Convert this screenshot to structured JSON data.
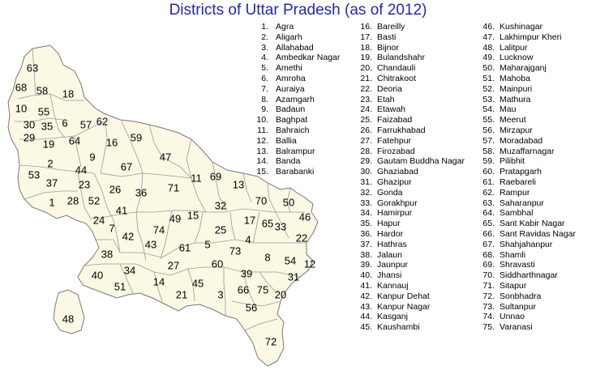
{
  "title": "Districts of Uttar Pradesh (as of 2012)",
  "colors": {
    "land": "#fbf8e4",
    "border": "#777777",
    "title": "#2226b8"
  },
  "districts": [
    {
      "n": "1.",
      "name": "Agra"
    },
    {
      "n": "2.",
      "name": "Aligarh"
    },
    {
      "n": "3.",
      "name": "Allahabad"
    },
    {
      "n": "4.",
      "name": "Ambedkar Nagar"
    },
    {
      "n": "5.",
      "name": "Amethi"
    },
    {
      "n": "6.",
      "name": "Amroha"
    },
    {
      "n": "7.",
      "name": "Auraiya"
    },
    {
      "n": "8.",
      "name": "Azamgarh"
    },
    {
      "n": "9.",
      "name": "Badaun"
    },
    {
      "n": "10.",
      "name": "Baghpat"
    },
    {
      "n": "11.",
      "name": "Bahraich"
    },
    {
      "n": "12.",
      "name": "Ballia"
    },
    {
      "n": "13.",
      "name": "Balrampur"
    },
    {
      "n": "14.",
      "name": "Banda"
    },
    {
      "n": "15.",
      "name": "Barabanki"
    },
    {
      "n": "16.",
      "name": "Bareilly"
    },
    {
      "n": "17.",
      "name": "Basti"
    },
    {
      "n": "18.",
      "name": "Bijnor"
    },
    {
      "n": "19.",
      "name": "Bulandshahr"
    },
    {
      "n": "20.",
      "name": "Chandauli"
    },
    {
      "n": "21.",
      "name": "Chitrakoot"
    },
    {
      "n": "22.",
      "name": "Deoria"
    },
    {
      "n": "23.",
      "name": "Etah"
    },
    {
      "n": "24.",
      "name": "Etawah"
    },
    {
      "n": "25.",
      "name": "Faizabad"
    },
    {
      "n": "26.",
      "name": "Farrukhabad"
    },
    {
      "n": "27.",
      "name": "Fatehpur"
    },
    {
      "n": "28.",
      "name": "Firozabad"
    },
    {
      "n": "29.",
      "name": "Gautam Buddha Nagar"
    },
    {
      "n": "30.",
      "name": "Ghaziabad"
    },
    {
      "n": "31.",
      "name": "Ghazipur"
    },
    {
      "n": "32.",
      "name": "Gonda"
    },
    {
      "n": "33.",
      "name": "Gorakhpur"
    },
    {
      "n": "34.",
      "name": "Hamirpur"
    },
    {
      "n": "35.",
      "name": "Hapur"
    },
    {
      "n": "36.",
      "name": "Hardor"
    },
    {
      "n": "37.",
      "name": "Hathras"
    },
    {
      "n": "38.",
      "name": "Jalaun"
    },
    {
      "n": "39.",
      "name": "Jaunpur"
    },
    {
      "n": "40.",
      "name": "Jhansi"
    },
    {
      "n": "41.",
      "name": "Kannauj"
    },
    {
      "n": "42.",
      "name": "Kanpur Dehat"
    },
    {
      "n": "43.",
      "name": "Kanpur Nagar"
    },
    {
      "n": "44.",
      "name": "Kasganj"
    },
    {
      "n": "45.",
      "name": "Kaushambi"
    },
    {
      "n": "46.",
      "name": "Kushinagar"
    },
    {
      "n": "47.",
      "name": "Lakhimpur Kheri"
    },
    {
      "n": "48.",
      "name": "Lalitpur"
    },
    {
      "n": "49.",
      "name": "Lucknow"
    },
    {
      "n": "50.",
      "name": "Maharajganj"
    },
    {
      "n": "51.",
      "name": "Mahoba"
    },
    {
      "n": "52.",
      "name": "Mainpuri"
    },
    {
      "n": "53.",
      "name": "Mathura"
    },
    {
      "n": "54.",
      "name": "Mau"
    },
    {
      "n": "55.",
      "name": "Meerut"
    },
    {
      "n": "56.",
      "name": "Mirzapur"
    },
    {
      "n": "57.",
      "name": "Moradabad"
    },
    {
      "n": "58.",
      "name": "Muzaffarnagar"
    },
    {
      "n": "59.",
      "name": "Pilibhit"
    },
    {
      "n": "60.",
      "name": "Pratapgarh"
    },
    {
      "n": "61.",
      "name": "Raebareli"
    },
    {
      "n": "62.",
      "name": "Rampur"
    },
    {
      "n": "63.",
      "name": "Saharanpur"
    },
    {
      "n": "64.",
      "name": "Sambhal"
    },
    {
      "n": "65.",
      "name": "Sant Kabir Nagar"
    },
    {
      "n": "66.",
      "name": "Sant Ravidas Nagar"
    },
    {
      "n": "67.",
      "name": "Shahjahanpur"
    },
    {
      "n": "68.",
      "name": "Shamli"
    },
    {
      "n": "69.",
      "name": "Shravasti"
    },
    {
      "n": "70.",
      "name": "Siddharthnagar"
    },
    {
      "n": "71.",
      "name": "Sitapur"
    },
    {
      "n": "72.",
      "name": "Sonbhadra"
    },
    {
      "n": "73.",
      "name": "Sultanpur"
    },
    {
      "n": "74.",
      "name": "Unnao"
    },
    {
      "n": "75.",
      "name": "Varanasi"
    }
  ],
  "map_labels": [
    "63",
    "68",
    "58",
    "18",
    "10",
    "55",
    "30",
    "35",
    "6",
    "57",
    "62",
    "29",
    "19",
    "64",
    "16",
    "59",
    "9",
    "47",
    "2",
    "44",
    "67",
    "53",
    "37",
    "23",
    "26",
    "36",
    "71",
    "11",
    "69",
    "13",
    "1",
    "28",
    "52",
    "41",
    "70",
    "50",
    "32",
    "24",
    "49",
    "15",
    "17",
    "65",
    "33",
    "46",
    "7",
    "42",
    "74",
    "25",
    "22",
    "43",
    "38",
    "61",
    "5",
    "4",
    "73",
    "34",
    "27",
    "60",
    "8",
    "54",
    "12",
    "40",
    "39",
    "31",
    "51",
    "14",
    "45",
    "21",
    "3",
    "66",
    "75",
    "20",
    "56",
    "48",
    "72"
  ]
}
